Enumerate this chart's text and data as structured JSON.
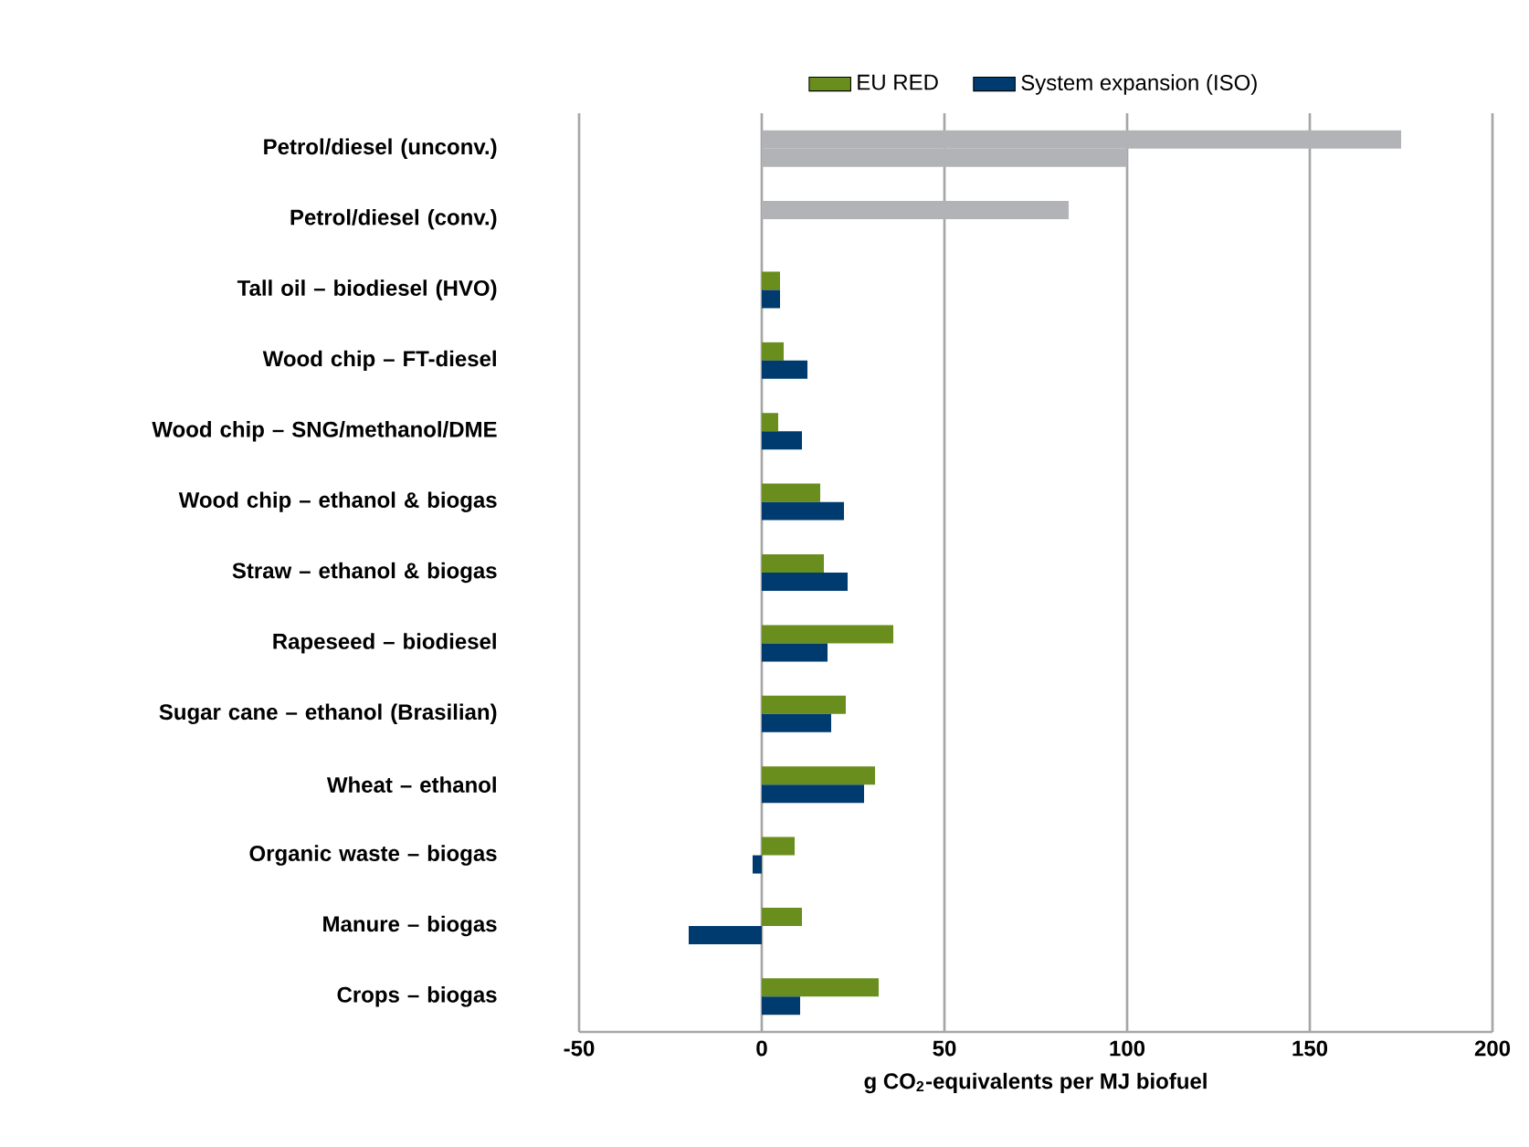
{
  "chart_data": {
    "type": "bar",
    "orientation": "horizontal",
    "categories": [
      "Petrol/diesel (unconv.)",
      "Petrol/diesel (conv.)",
      "Tall oil – biodiesel (HVO)",
      "Wood chip – FT-diesel",
      "Wood chip – SNG/methanol/DME",
      "Wood chip – ethanol & biogas",
      "Straw – ethanol & biogas",
      "Rapeseed – biodiesel",
      "Sugar cane – ethanol (Brasilian)",
      "Wheat – ethanol",
      "Organic waste – biogas",
      "Manure – biogas",
      "Crops – biogas"
    ],
    "series": [
      {
        "name": "EU RED",
        "color": "#6a8e1e",
        "colors": [
          "#b1b3b6",
          "#b1b3b6",
          "#6a8e1e",
          "#6a8e1e",
          "#6a8e1e",
          "#6a8e1e",
          "#6a8e1e",
          "#6a8e1e",
          "#6a8e1e",
          "#6a8e1e",
          "#6a8e1e",
          "#6a8e1e",
          "#6a8e1e"
        ],
        "values": [
          175,
          84,
          5,
          6,
          4.5,
          16,
          17,
          36,
          23,
          31,
          9,
          11,
          32
        ]
      },
      {
        "name": "System expansion (ISO)",
        "color": "#003b6f",
        "colors": [
          "#b1b3b6",
          null,
          "#003b6f",
          "#003b6f",
          "#003b6f",
          "#003b6f",
          "#003b6f",
          "#003b6f",
          "#003b6f",
          "#003b6f",
          "#003b6f",
          "#003b6f",
          "#003b6f"
        ],
        "values": [
          100,
          null,
          5,
          12.5,
          11,
          22.5,
          23.5,
          18,
          19,
          28,
          -2.5,
          -20,
          10.5
        ]
      }
    ],
    "xlabel": "g CO$_{2}$-equivalents per MJ biofuel",
    "xlim": [
      -50,
      200
    ],
    "xticks": [
      -50,
      0,
      50,
      100,
      150,
      200
    ],
    "grid": "x",
    "legend": "top"
  }
}
